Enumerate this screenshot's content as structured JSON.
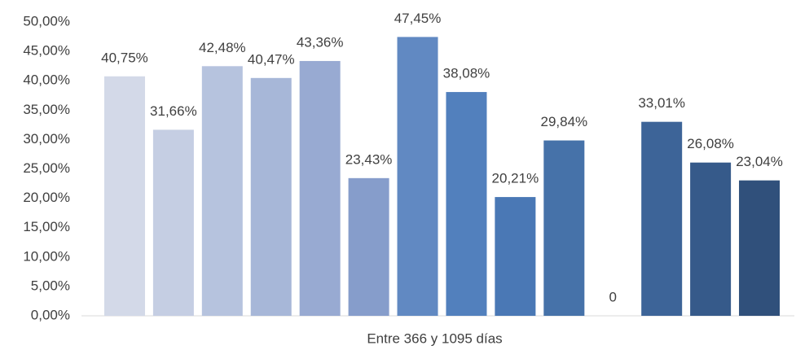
{
  "chart_data": {
    "type": "bar",
    "categories": [
      "Entre 366 y 1095 días"
    ],
    "ylim": [
      0,
      50
    ],
    "yticks": [
      {
        "value": 0,
        "label": "0,00%"
      },
      {
        "value": 5,
        "label": "5,00%"
      },
      {
        "value": 10,
        "label": "10,00%"
      },
      {
        "value": 15,
        "label": "15,00%"
      },
      {
        "value": 20,
        "label": "20,00%"
      },
      {
        "value": 25,
        "label": "25,00%"
      },
      {
        "value": 30,
        "label": "30,00%"
      },
      {
        "value": 35,
        "label": "35,00%"
      },
      {
        "value": 40,
        "label": "40,00%"
      },
      {
        "value": 45,
        "label": "45,00%"
      },
      {
        "value": 50,
        "label": "50,00%"
      }
    ],
    "series": [
      {
        "color": "#d3d9e8",
        "values": [
          40.75
        ],
        "value_labels": [
          "40,75%"
        ]
      },
      {
        "color": "#c5cee3",
        "values": [
          31.66
        ],
        "value_labels": [
          "31,66%"
        ]
      },
      {
        "color": "#b6c3de",
        "values": [
          42.48
        ],
        "value_labels": [
          "42,48%"
        ]
      },
      {
        "color": "#a7b7d8",
        "values": [
          40.47
        ],
        "value_labels": [
          "40,47%"
        ]
      },
      {
        "color": "#98aad2",
        "values": [
          43.36
        ],
        "value_labels": [
          "43,36%"
        ]
      },
      {
        "color": "#869dcb",
        "values": [
          23.43
        ],
        "value_labels": [
          "23,43%"
        ]
      },
      {
        "color": "#6189c2",
        "values": [
          47.45
        ],
        "value_labels": [
          "47,45%"
        ]
      },
      {
        "color": "#5280bd",
        "values": [
          38.08
        ],
        "value_labels": [
          "38,08%"
        ]
      },
      {
        "color": "#4a78b5",
        "values": [
          20.21
        ],
        "value_labels": [
          "20,21%"
        ]
      },
      {
        "color": "#4672a9",
        "values": [
          29.84
        ],
        "value_labels": [
          "29,84%"
        ]
      },
      {
        "color": "#426c9f",
        "values": [
          0
        ]
      },
      {
        "color": "#3d6498",
        "values": [
          33.01
        ],
        "value_labels": [
          "33,01%"
        ]
      },
      {
        "color": "#365a8a",
        "values": [
          26.08
        ],
        "value_labels": [
          "26,08%"
        ]
      },
      {
        "color": "#30507b",
        "values": [
          23.04
        ],
        "value_labels": [
          "23,04%"
        ]
      }
    ]
  }
}
